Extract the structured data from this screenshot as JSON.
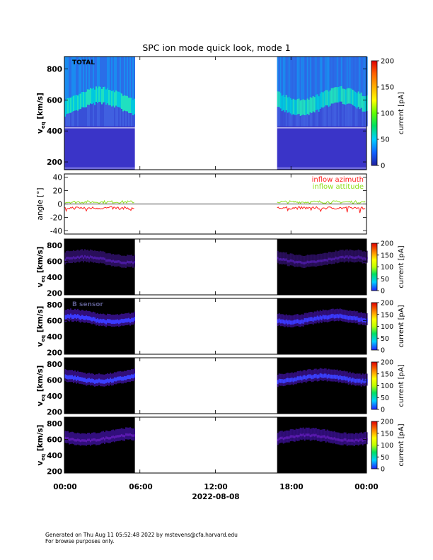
{
  "title": "SPC ion mode quick look, mode 1",
  "time_axis": {
    "ticks": [
      "00:00",
      "06:00",
      "12:00",
      "18:00",
      "00:00"
    ],
    "date_label": "2022-08-08"
  },
  "colorbar": {
    "label": "current [pA]",
    "ticks_full": [
      "0",
      "50",
      "100",
      "150",
      "200"
    ],
    "ticks_small": [
      "0",
      "50",
      "100",
      "150",
      "200"
    ]
  },
  "footer": {
    "line1": "Generated on Thu Aug 11 05:52:48 2022 by mstevens@cfa.harvard.edu",
    "line2": "For browse purposes only."
  },
  "chart_data": [
    {
      "type": "heatmap",
      "panel": "total",
      "label": "TOTAL",
      "ylabel": "v_eq [km/s]",
      "yticks": [
        200,
        400,
        600,
        800
      ],
      "ylim": [
        150,
        880
      ],
      "data_intervals_hours": [
        [
          0,
          5.6
        ],
        [
          16.9,
          24
        ]
      ],
      "colorbar_range": [
        0,
        200
      ]
    },
    {
      "type": "line",
      "panel": "angle",
      "ylabel": "angle [°]",
      "yticks": [
        -40,
        -20,
        0,
        20,
        40
      ],
      "ylim": [
        -45,
        45
      ],
      "series": [
        {
          "name": "inflow azimuth",
          "color": "#ff2020",
          "typical": -6
        },
        {
          "name": "inflow attitude",
          "color": "#90e020",
          "typical": 3
        }
      ]
    },
    {
      "type": "heatmap",
      "panel": "sensor-1",
      "label": "",
      "ylabel": "v_eq [km/s]",
      "yticks": [
        200,
        400,
        600,
        800
      ],
      "ylim": [
        180,
        880
      ]
    },
    {
      "type": "heatmap",
      "panel": "sensor-2",
      "label": "B sensor",
      "ylabel": "v_eq [km/s]",
      "yticks": [
        200,
        400,
        600,
        800
      ],
      "ylim": [
        180,
        880
      ]
    },
    {
      "type": "heatmap",
      "panel": "sensor-3",
      "label": "",
      "ylabel": "v_eq [km/s]",
      "yticks": [
        200,
        400,
        600,
        800
      ],
      "ylim": [
        180,
        880
      ]
    },
    {
      "type": "heatmap",
      "panel": "sensor-4",
      "label": "",
      "ylabel": "v_eq [km/s]",
      "yticks": [
        200,
        400,
        600,
        800
      ],
      "ylim": [
        180,
        880
      ]
    }
  ]
}
